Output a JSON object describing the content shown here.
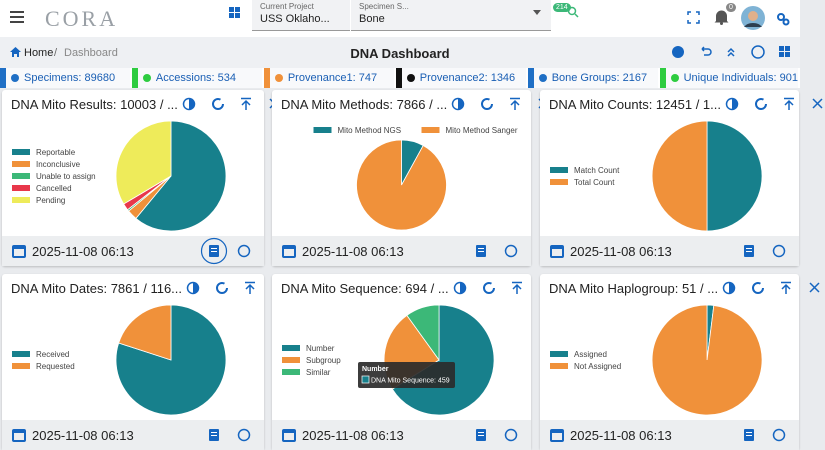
{
  "header": {
    "logo": "CORA",
    "project_label": "Current Project",
    "project_value": "USS Oklaho...",
    "specimen_label": "Specimen S...",
    "specimen_value": "Bone",
    "badge": "214",
    "notifications": "0"
  },
  "breadcrumb": {
    "home": "Home",
    "separator": "/",
    "current": "Dashboard"
  },
  "page_title": "DNA Dashboard",
  "stats": [
    {
      "text": "Specimens: 89680",
      "color": "#1f6fc5"
    },
    {
      "text": "Accessions: 534",
      "color": "#2ecc40"
    },
    {
      "text": "Provenance1: 747",
      "color": "#f0913a"
    },
    {
      "text": "Provenance2: 1346",
      "color": "#111111"
    },
    {
      "text": "Bone Groups: 2167",
      "color": "#1f6fc5"
    },
    {
      "text": "Unique Individuals: 901",
      "color": "#2ecc40"
    }
  ],
  "chart_data": [
    {
      "type": "pie",
      "title": "DNA Mito Results: 10003 / ...",
      "timestamp": "2025-11-08 06:13",
      "legend": "left",
      "categories": [
        "Reportable",
        "Inconclusive",
        "Unable to assign",
        "Cancelled",
        "Pending"
      ],
      "values": [
        61,
        3,
        0.5,
        2,
        33.5
      ],
      "colors": [
        "#17808c",
        "#f0913a",
        "#3cb878",
        "#e8374a",
        "#eeeb5a"
      ]
    },
    {
      "type": "pie",
      "title": "DNA Mito Methods: 7866 / ...",
      "timestamp": "2025-11-08 06:13",
      "legend": "top",
      "categories": [
        "Mito Method NGS",
        "Mito Method Sanger"
      ],
      "values": [
        8,
        92
      ],
      "colors": [
        "#17808c",
        "#f0913a"
      ]
    },
    {
      "type": "pie",
      "title": "DNA Mito Counts: 12451 / 1...",
      "timestamp": "2025-11-08 06:13",
      "legend": "left",
      "categories": [
        "Match Count",
        "Total Count"
      ],
      "values": [
        50,
        50
      ],
      "colors": [
        "#17808c",
        "#f0913a"
      ]
    },
    {
      "type": "pie",
      "title": "DNA Mito Dates: 7861 / 116...",
      "timestamp": "2025-11-08 06:13",
      "legend": "left",
      "categories": [
        "Received",
        "Requested"
      ],
      "values": [
        80,
        20
      ],
      "colors": [
        "#17808c",
        "#f0913a"
      ]
    },
    {
      "type": "pie",
      "title": "DNA Mito Sequence: 694 / ...",
      "timestamp": "2025-11-08 06:13",
      "legend": "left",
      "categories": [
        "Number",
        "Subgroup",
        "Similar"
      ],
      "values": [
        459,
        166,
        69
      ],
      "colors": [
        "#17808c",
        "#f0913a",
        "#3cb878"
      ],
      "tooltip": {
        "title": "Number",
        "text": "DNA Mito Sequence: 459"
      }
    },
    {
      "type": "pie",
      "title": "DNA Mito Haplogroup: 51 / ...",
      "timestamp": "2025-11-08 06:13",
      "legend": "left",
      "categories": [
        "Assigned",
        "Not Assigned"
      ],
      "values": [
        1,
        50
      ],
      "colors": [
        "#17808c",
        "#f0913a"
      ]
    }
  ]
}
